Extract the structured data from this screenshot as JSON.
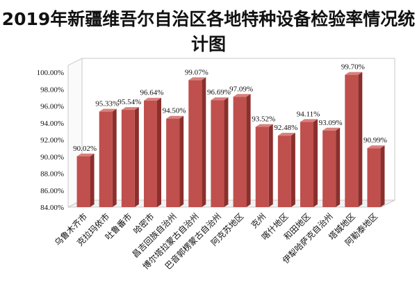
{
  "chart_data": {
    "type": "bar",
    "title": "2019年新疆维吾尔自治区各地特种设备检验率情况统计图",
    "xlabel": "",
    "ylabel": "",
    "ylim": [
      84,
      100
    ],
    "yticks": [
      "84.00%",
      "86.00%",
      "88.00%",
      "90.00%",
      "92.00%",
      "94.00%",
      "96.00%",
      "98.00%",
      "100.00%"
    ],
    "grid": false,
    "legend": "none",
    "categories": [
      "乌鲁木齐市",
      "克拉玛依市",
      "吐鲁番市",
      "哈密市",
      "昌吉回族自治州",
      "博尔塔拉蒙古自治州",
      "巴音郭楞蒙古自治州",
      "阿克苏地区",
      "克州",
      "喀什地区",
      "和田地区",
      "伊犁哈萨克自治州",
      "塔城地区",
      "阿勒泰地区"
    ],
    "values": [
      90.02,
      95.33,
      95.54,
      96.64,
      94.5,
      99.07,
      96.69,
      97.09,
      93.52,
      92.48,
      94.11,
      93.09,
      99.7,
      90.99
    ],
    "data_labels": [
      "90.02%",
      "95.33%",
      "95.54%",
      "96.64%",
      "94.50%",
      "99.07%",
      "96.69%",
      "97.09%",
      "93.52%",
      "92.48%",
      "94.11%",
      "93.09%",
      "99.70%",
      "90.99%"
    ],
    "bar_color": "#c0504d"
  }
}
